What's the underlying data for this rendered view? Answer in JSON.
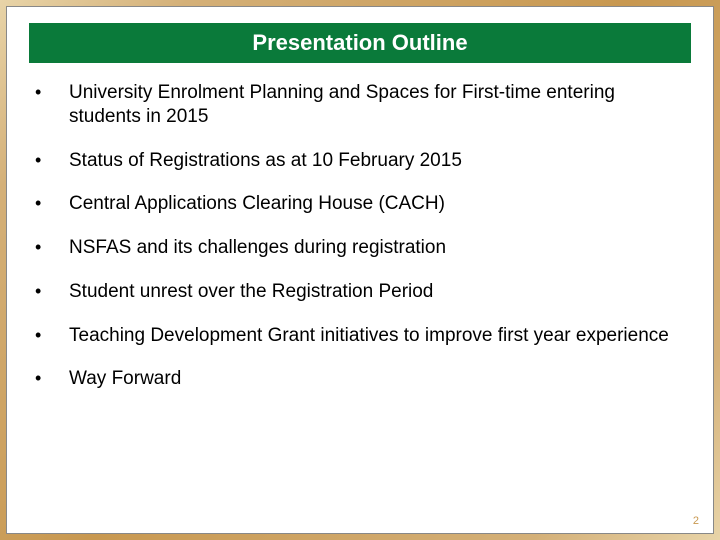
{
  "slide": {
    "title": "Presentation Outline",
    "title_bg_color": "#0a7a3a",
    "title_text_color": "#ffffff",
    "title_fontsize": 22,
    "body_fontsize": 19,
    "body_text_color": "#000000",
    "background_color": "#ffffff",
    "border_gradient": [
      "#e8d4a8",
      "#d4b078",
      "#c89850"
    ],
    "bullets": [
      "University Enrolment Planning and Spaces for First-time entering students in 2015",
      "Status of Registrations as at 10 February 2015",
      "Central Applications Clearing House (CACH)",
      "NSFAS and its challenges during registration",
      "Student unrest over the Registration Period",
      "Teaching Development Grant initiatives to improve first year experience",
      "Way Forward"
    ],
    "bullet_char": "•",
    "page_number": "2",
    "page_number_color": "#c89850"
  }
}
